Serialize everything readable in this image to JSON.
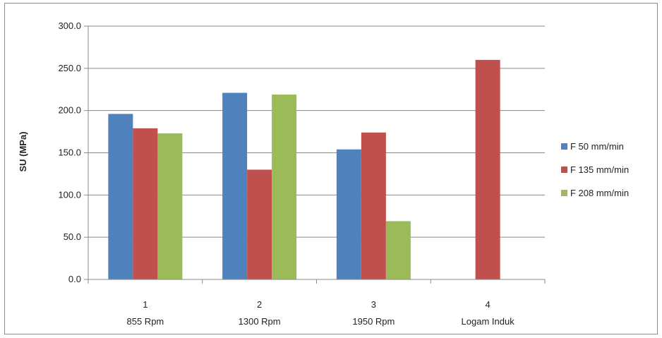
{
  "chart_data": {
    "type": "bar",
    "ylabel": "SU (MPa)",
    "xlabel": "",
    "ylim": [
      0,
      300
    ],
    "yticks": [
      "0.0",
      "50.0",
      "100.0",
      "150.0",
      "200.0",
      "250.0",
      "300.0"
    ],
    "grid": true,
    "legend_position": "right",
    "categories": [
      {
        "number": "1",
        "label": "855 Rpm"
      },
      {
        "number": "2",
        "label": "1300 Rpm"
      },
      {
        "number": "3",
        "label": "1950 Rpm"
      },
      {
        "number": "4",
        "label": "Logam Induk"
      }
    ],
    "series": [
      {
        "name": "F 50 mm/min",
        "color": "#4f81bd",
        "values": [
          196,
          221,
          154,
          null
        ]
      },
      {
        "name": "F 135 mm/min",
        "color": "#c0504d",
        "values": [
          179,
          130,
          174,
          260
        ]
      },
      {
        "name": "F 208 mm/min",
        "color": "#9bbb59",
        "values": [
          173,
          219,
          69,
          null
        ]
      }
    ]
  }
}
